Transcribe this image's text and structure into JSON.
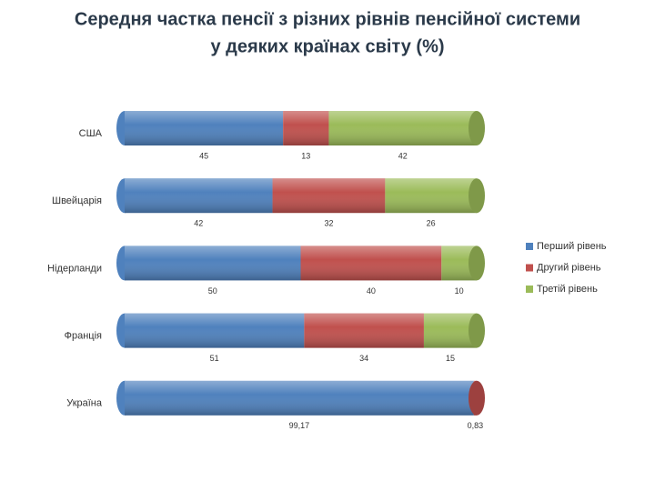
{
  "chart_data": {
    "type": "stacked-bar-100",
    "title": [
      "Середня частка пенсії з різних рівнів пенсійної системи",
      "у деяких країнах світу (%)"
    ],
    "categories": [
      "США",
      "Швейцарія",
      "Нідерланди",
      "Франція",
      "Україна"
    ],
    "series": [
      {
        "name": "Перший рівень",
        "color": "#4f81bd",
        "values": [
          45,
          42,
          50,
          51,
          99.17
        ],
        "value_labels": [
          "45",
          "42",
          "50",
          "51",
          "99,17"
        ]
      },
      {
        "name": "Другий рівень",
        "color": "#c0504d",
        "values": [
          13,
          32,
          40,
          34,
          0.83
        ],
        "value_labels": [
          "13",
          "32",
          "40",
          "34",
          "0,83"
        ]
      },
      {
        "name": "Третій рівень",
        "color": "#9bbb59",
        "values": [
          42,
          26,
          10,
          15,
          null
        ]
      }
    ],
    "legend": "right"
  }
}
